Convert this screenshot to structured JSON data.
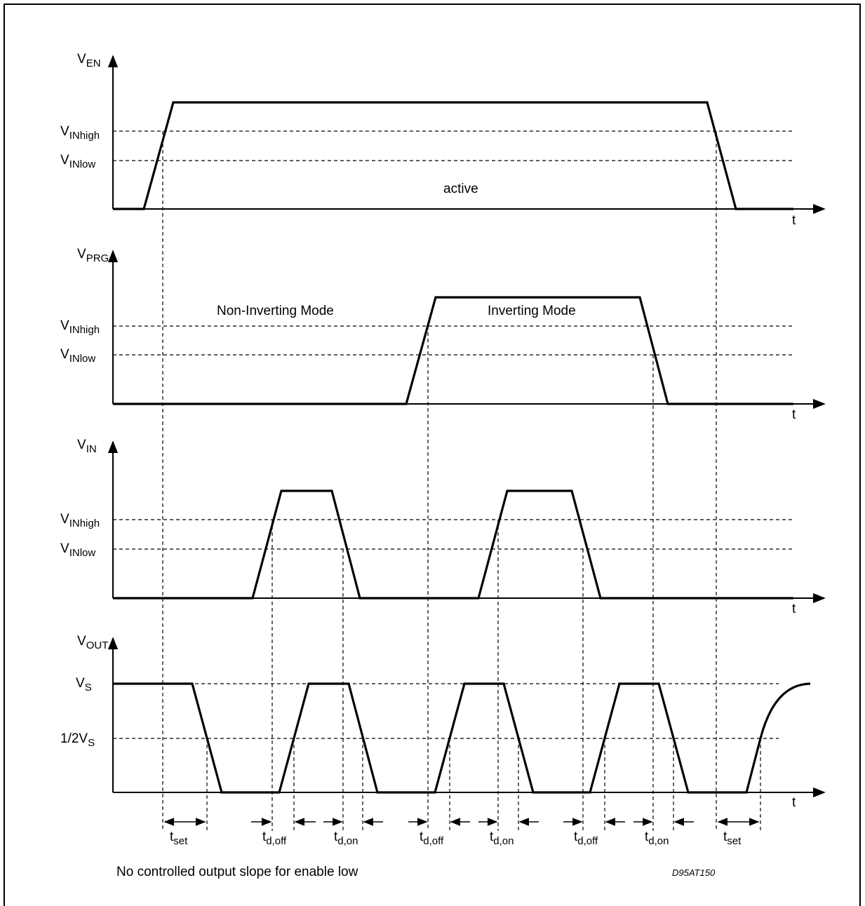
{
  "panels": {
    "ven": {
      "ylabel_main": "V",
      "ylabel_sub": "EN",
      "high": "V",
      "high_sub": "INhigh",
      "low": "V",
      "low_sub": "INlow",
      "time": "t",
      "annotation": "active"
    },
    "vprg": {
      "ylabel_main": "V",
      "ylabel_sub": "PRG",
      "high": "V",
      "high_sub": "INhigh",
      "low": "V",
      "low_sub": "INlow",
      "time": "t",
      "annotation_left": "Non-Inverting Mode",
      "annotation_right": "Inverting Mode"
    },
    "vin": {
      "ylabel_main": "V",
      "ylabel_sub": "IN",
      "high": "V",
      "high_sub": "INhigh",
      "low": "V",
      "low_sub": "INlow",
      "time": "t"
    },
    "vout": {
      "ylabel_main": "V",
      "ylabel_sub": "OUT",
      "vs_main": "V",
      "vs_sub": "S",
      "half_main": "1/2V",
      "half_sub": "S",
      "time": "t"
    }
  },
  "timing_labels": [
    {
      "main": "t",
      "sub": "set"
    },
    {
      "main": "t",
      "sub": "d,off"
    },
    {
      "main": "t",
      "sub": "d,on"
    },
    {
      "main": "t",
      "sub": "d,off"
    },
    {
      "main": "t",
      "sub": "d,on"
    },
    {
      "main": "t",
      "sub": "d,off"
    },
    {
      "main": "t",
      "sub": "d,on"
    },
    {
      "main": "t",
      "sub": "set"
    }
  ],
  "footnote": "No controlled output slope for enable low",
  "drawing_id": "D95AT150"
}
